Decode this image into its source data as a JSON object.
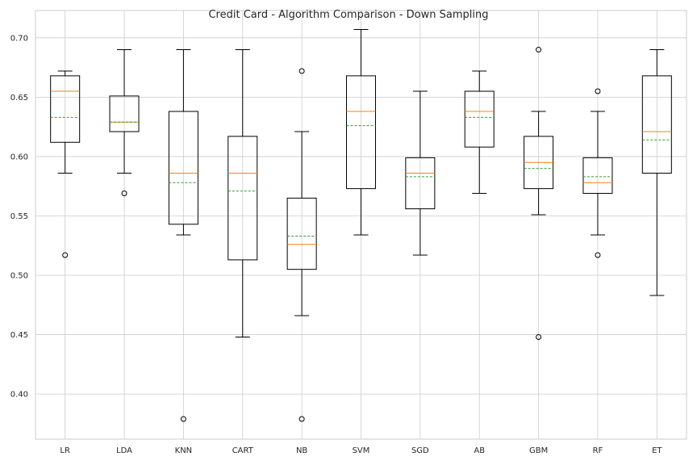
{
  "chart_data": {
    "type": "box",
    "title": "Credit Card - Algorithm Comparison - Down Sampling",
    "xlabel": "",
    "ylabel": "",
    "ylim": [
      0.362,
      0.723
    ],
    "yticks": [
      "0.40",
      "0.45",
      "0.50",
      "0.55",
      "0.60",
      "0.65",
      "0.70"
    ],
    "grid": true,
    "categories": [
      "LR",
      "LDA",
      "KNN",
      "CART",
      "NB",
      "SVM",
      "SGD",
      "AB",
      "GBM",
      "RF",
      "ET"
    ],
    "boxes": [
      {
        "name": "LR",
        "whisker_low": 0.586,
        "q1": 0.612,
        "median": 0.655,
        "mean": 0.633,
        "q3": 0.668,
        "whisker_high": 0.672,
        "outliers": [
          0.517
        ]
      },
      {
        "name": "LDA",
        "whisker_low": 0.586,
        "q1": 0.621,
        "median": 0.629,
        "mean": 0.629,
        "q3": 0.651,
        "whisker_high": 0.69,
        "outliers": [
          0.569
        ]
      },
      {
        "name": "KNN",
        "whisker_low": 0.534,
        "q1": 0.543,
        "median": 0.586,
        "mean": 0.578,
        "q3": 0.638,
        "whisker_high": 0.69,
        "outliers": [
          0.379
        ]
      },
      {
        "name": "CART",
        "whisker_low": 0.448,
        "q1": 0.513,
        "median": 0.586,
        "mean": 0.571,
        "q3": 0.617,
        "whisker_high": 0.69,
        "outliers": []
      },
      {
        "name": "NB",
        "whisker_low": 0.466,
        "q1": 0.505,
        "median": 0.526,
        "mean": 0.533,
        "q3": 0.565,
        "whisker_high": 0.621,
        "outliers": [
          0.672,
          0.379
        ]
      },
      {
        "name": "SVM",
        "whisker_low": 0.534,
        "q1": 0.573,
        "median": 0.638,
        "mean": 0.626,
        "q3": 0.668,
        "whisker_high": 0.707,
        "outliers": []
      },
      {
        "name": "SGD",
        "whisker_low": 0.517,
        "q1": 0.556,
        "median": 0.586,
        "mean": 0.583,
        "q3": 0.599,
        "whisker_high": 0.655,
        "outliers": []
      },
      {
        "name": "AB",
        "whisker_low": 0.569,
        "q1": 0.608,
        "median": 0.638,
        "mean": 0.633,
        "q3": 0.655,
        "whisker_high": 0.672,
        "outliers": []
      },
      {
        "name": "GBM",
        "whisker_low": 0.551,
        "q1": 0.573,
        "median": 0.595,
        "mean": 0.59,
        "q3": 0.617,
        "whisker_high": 0.638,
        "outliers": [
          0.69,
          0.448
        ]
      },
      {
        "name": "RF",
        "whisker_low": 0.534,
        "q1": 0.569,
        "median": 0.578,
        "mean": 0.583,
        "q3": 0.599,
        "whisker_high": 0.638,
        "outliers": [
          0.655,
          0.517
        ]
      },
      {
        "name": "ET",
        "whisker_low": 0.483,
        "q1": 0.586,
        "median": 0.621,
        "mean": 0.614,
        "q3": 0.668,
        "whisker_high": 0.69,
        "outliers": []
      }
    ],
    "colors": {
      "box": "#000000",
      "median": "#ff7f0e",
      "mean": "#2ca02c",
      "grid": "#cccccc",
      "frame": "#cccccc"
    }
  }
}
